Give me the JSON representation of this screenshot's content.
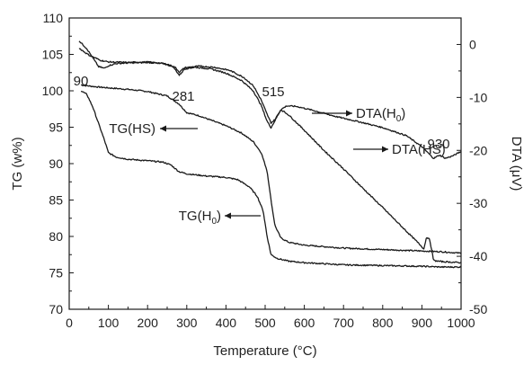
{
  "chart_data": {
    "type": "line",
    "xlabel": "Temperature (°C)",
    "y_left_label": "TG (w%)",
    "y_right_label": "DTA (μV)",
    "xlim": [
      0,
      1000
    ],
    "y_left_lim": [
      70,
      110
    ],
    "y_right_lim": [
      -50,
      5
    ],
    "x_ticks": [
      0,
      100,
      200,
      300,
      400,
      500,
      600,
      700,
      800,
      900,
      1000
    ],
    "y_left_ticks": [
      70,
      75,
      80,
      85,
      90,
      95,
      100,
      105,
      110
    ],
    "y_right_ticks": [
      0,
      -10,
      -20,
      -30,
      -40,
      -50
    ],
    "grid": false,
    "line_color": "#1a1a1a",
    "series": [
      {
        "name": "TG(HS)",
        "axis": "left",
        "points": [
          [
            30,
            100.8
          ],
          [
            60,
            100.6
          ],
          [
            100,
            100.4
          ],
          [
            150,
            100.2
          ],
          [
            200,
            99.9
          ],
          [
            250,
            99.3
          ],
          [
            280,
            98.2
          ],
          [
            300,
            97.0
          ],
          [
            330,
            96.6
          ],
          [
            360,
            96.0
          ],
          [
            400,
            95.2
          ],
          [
            440,
            94.2
          ],
          [
            470,
            93.0
          ],
          [
            490,
            91.5
          ],
          [
            505,
            89.0
          ],
          [
            515,
            85.0
          ],
          [
            525,
            81.5
          ],
          [
            540,
            79.8
          ],
          [
            560,
            79.2
          ],
          [
            600,
            78.8
          ],
          [
            700,
            78.4
          ],
          [
            800,
            78.2
          ],
          [
            900,
            78.0
          ],
          [
            950,
            77.9
          ],
          [
            1000,
            77.7
          ]
        ]
      },
      {
        "name": "TG(H0)",
        "axis": "left",
        "points": [
          [
            30,
            100.0
          ],
          [
            45,
            99.5
          ],
          [
            60,
            97.8
          ],
          [
            75,
            95.5
          ],
          [
            90,
            93.2
          ],
          [
            100,
            91.5
          ],
          [
            120,
            90.9
          ],
          [
            150,
            90.6
          ],
          [
            200,
            90.4
          ],
          [
            240,
            90.2
          ],
          [
            260,
            89.8
          ],
          [
            280,
            88.9
          ],
          [
            300,
            88.6
          ],
          [
            350,
            88.3
          ],
          [
            400,
            88.1
          ],
          [
            430,
            87.8
          ],
          [
            460,
            86.8
          ],
          [
            480,
            85.5
          ],
          [
            495,
            83.5
          ],
          [
            505,
            80.0
          ],
          [
            515,
            77.5
          ],
          [
            530,
            77.0
          ],
          [
            560,
            76.6
          ],
          [
            600,
            76.4
          ],
          [
            700,
            76.1
          ],
          [
            800,
            76.0
          ],
          [
            900,
            75.9
          ],
          [
            950,
            75.8
          ],
          [
            1000,
            75.8
          ]
        ]
      },
      {
        "name": "DTA(H0)",
        "axis": "right",
        "points": [
          [
            25,
            0.7
          ],
          [
            45,
            -0.8
          ],
          [
            60,
            -2.5
          ],
          [
            75,
            -4.2
          ],
          [
            90,
            -4.5
          ],
          [
            100,
            -4.0
          ],
          [
            120,
            -3.6
          ],
          [
            150,
            -3.5
          ],
          [
            200,
            -3.4
          ],
          [
            240,
            -3.6
          ],
          [
            265,
            -4.2
          ],
          [
            281,
            -5.8
          ],
          [
            295,
            -4.6
          ],
          [
            320,
            -4.3
          ],
          [
            360,
            -4.6
          ],
          [
            400,
            -5.4
          ],
          [
            440,
            -6.8
          ],
          [
            470,
            -8.8
          ],
          [
            490,
            -11.5
          ],
          [
            505,
            -14.5
          ],
          [
            515,
            -15.7
          ],
          [
            525,
            -14.4
          ],
          [
            540,
            -12.3
          ],
          [
            555,
            -11.6
          ],
          [
            580,
            -11.7
          ],
          [
            620,
            -12.4
          ],
          [
            680,
            -13.6
          ],
          [
            740,
            -14.6
          ],
          [
            800,
            -15.7
          ],
          [
            860,
            -17.2
          ],
          [
            900,
            -19.3
          ],
          [
            920,
            -20.8
          ],
          [
            930,
            -21.5
          ],
          [
            945,
            -20.9
          ],
          [
            960,
            -21.5
          ],
          [
            980,
            -21.0
          ],
          [
            1000,
            -20.2
          ]
        ]
      },
      {
        "name": "DTA(HS)",
        "axis": "right",
        "points": [
          [
            25,
            -0.7
          ],
          [
            50,
            -2.0
          ],
          [
            80,
            -3.0
          ],
          [
            100,
            -3.3
          ],
          [
            150,
            -3.4
          ],
          [
            200,
            -3.3
          ],
          [
            250,
            -3.7
          ],
          [
            270,
            -4.3
          ],
          [
            281,
            -5.2
          ],
          [
            295,
            -4.4
          ],
          [
            330,
            -4.1
          ],
          [
            370,
            -4.3
          ],
          [
            410,
            -4.9
          ],
          [
            445,
            -6.2
          ],
          [
            470,
            -7.8
          ],
          [
            490,
            -10.5
          ],
          [
            505,
            -13.2
          ],
          [
            515,
            -14.8
          ],
          [
            525,
            -14.2
          ],
          [
            540,
            -12.3
          ],
          [
            560,
            -13.3
          ],
          [
            600,
            -16.2
          ],
          [
            650,
            -20.0
          ],
          [
            700,
            -23.5
          ],
          [
            750,
            -27.2
          ],
          [
            800,
            -30.8
          ],
          [
            850,
            -34.5
          ],
          [
            880,
            -36.7
          ],
          [
            895,
            -37.8
          ],
          [
            905,
            -38.6
          ],
          [
            912,
            -36.3
          ],
          [
            920,
            -36.9
          ],
          [
            930,
            -40.8
          ],
          [
            950,
            -41.0
          ],
          [
            1000,
            -41.2
          ]
        ]
      }
    ],
    "annotations": [
      {
        "text": "90",
        "x": 90,
        "y": -4.5
      },
      {
        "text": "281",
        "x": 281,
        "y": -5.8
      },
      {
        "text": "515",
        "x": 515,
        "y": -15.7
      },
      {
        "text": "930",
        "x": 930,
        "y": -21.5
      }
    ],
    "series_labels": [
      {
        "base": "DTA(H",
        "sub": "0",
        "tail": ")",
        "series": "DTA(H0)"
      },
      {
        "base": "DTA(HS)",
        "sub": "",
        "tail": "",
        "series": "DTA(HS)"
      },
      {
        "base": "TG(HS)",
        "sub": "",
        "tail": "",
        "series": "TG(HS)"
      },
      {
        "base": "TG(H",
        "sub": "0",
        "tail": ")",
        "series": "TG(H0)"
      }
    ]
  }
}
